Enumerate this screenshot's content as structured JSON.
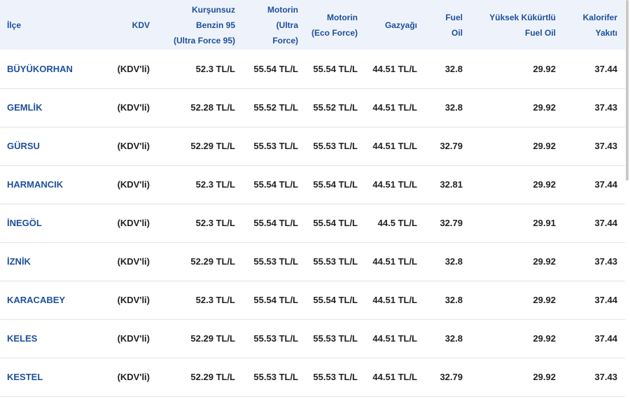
{
  "table": {
    "headers": [
      {
        "lines": [
          "İlçe"
        ]
      },
      {
        "lines": [
          "KDV"
        ]
      },
      {
        "lines": [
          "Kurşunsuz",
          "Benzin 95",
          "(Ultra Force 95)"
        ]
      },
      {
        "lines": [
          "Motorin",
          "(Ultra",
          "Force)"
        ]
      },
      {
        "lines": [
          "Motorin",
          "(Eco Force)"
        ]
      },
      {
        "lines": [
          "Gazyağı"
        ]
      },
      {
        "lines": [
          "Fuel",
          "Oil"
        ]
      },
      {
        "lines": [
          "Yüksek Kükürtlü",
          "Fuel Oil"
        ]
      },
      {
        "lines": [
          "Kalorifer",
          "Yakıtı"
        ]
      }
    ],
    "rows": [
      [
        "BÜYÜKORHAN",
        "(KDV'li)",
        "52.3 TL/L",
        "55.54 TL/L",
        "55.54 TL/L",
        "44.51 TL/L",
        "32.8",
        "29.92",
        "37.44"
      ],
      [
        "GEMLİK",
        "(KDV'li)",
        "52.28 TL/L",
        "55.52 TL/L",
        "55.52 TL/L",
        "44.51 TL/L",
        "32.8",
        "29.92",
        "37.43"
      ],
      [
        "GÜRSU",
        "(KDV'li)",
        "52.29 TL/L",
        "55.53 TL/L",
        "55.53 TL/L",
        "44.51 TL/L",
        "32.79",
        "29.92",
        "37.43"
      ],
      [
        "HARMANCIK",
        "(KDV'li)",
        "52.3 TL/L",
        "55.54 TL/L",
        "55.54 TL/L",
        "44.51 TL/L",
        "32.81",
        "29.92",
        "37.44"
      ],
      [
        "İNEGÖL",
        "(KDV'li)",
        "52.3 TL/L",
        "55.54 TL/L",
        "55.54 TL/L",
        "44.5 TL/L",
        "32.79",
        "29.91",
        "37.44"
      ],
      [
        "İZNİK",
        "(KDV'li)",
        "52.29 TL/L",
        "55.53 TL/L",
        "55.53 TL/L",
        "44.51 TL/L",
        "32.8",
        "29.92",
        "37.43"
      ],
      [
        "KARACABEY",
        "(KDV'li)",
        "52.3 TL/L",
        "55.54 TL/L",
        "55.54 TL/L",
        "44.51 TL/L",
        "32.8",
        "29.92",
        "37.44"
      ],
      [
        "KELES",
        "(KDV'li)",
        "52.29 TL/L",
        "55.53 TL/L",
        "55.53 TL/L",
        "44.51 TL/L",
        "32.8",
        "29.92",
        "37.44"
      ],
      [
        "KESTEL",
        "(KDV'li)",
        "52.29 TL/L",
        "55.53 TL/L",
        "55.53 TL/L",
        "44.51 TL/L",
        "32.79",
        "29.92",
        "37.43"
      ]
    ]
  },
  "colors": {
    "header_bg": "#eef3fb",
    "header_text": "#1e4f9c",
    "district_link": "#1e4f9c",
    "body_text": "#222222",
    "row_border": "#e3e3e3"
  }
}
